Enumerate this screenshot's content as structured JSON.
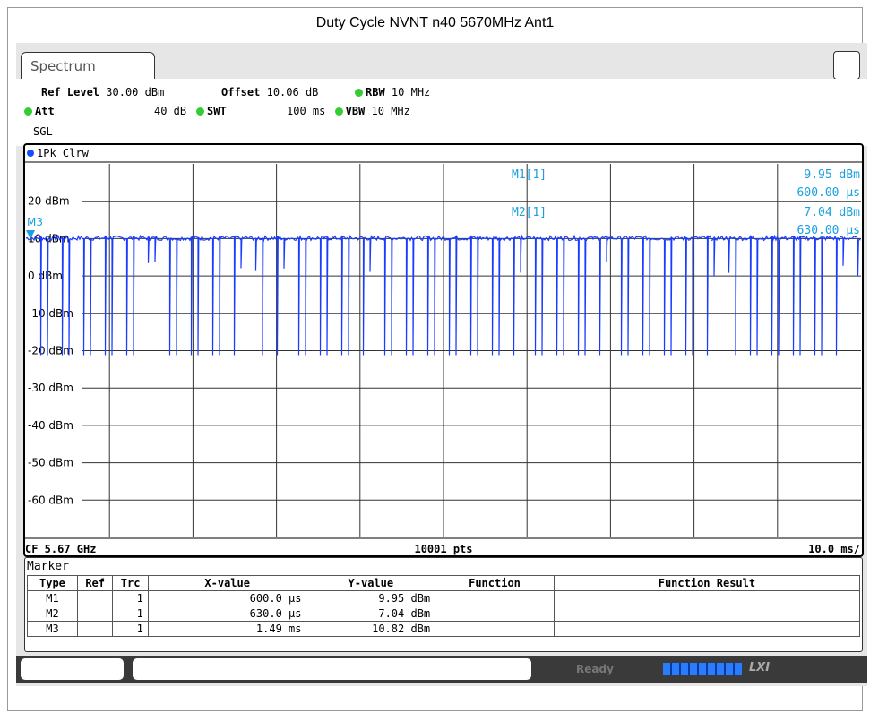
{
  "title": "Duty Cycle NVNT n40 5670MHz Ant1",
  "tab": "Spectrum",
  "settings": [
    {
      "label": "Ref Level",
      "value": "30.00 dBm"
    },
    {
      "label": "Offset",
      "value": "10.06 dB"
    },
    {
      "label": "RBW",
      "value": "10 MHz"
    },
    {
      "label": "Att",
      "value": "40 dB"
    },
    {
      "label": "SWT",
      "value": "100 ms"
    },
    {
      "label": "VBW",
      "value": "10 MHz"
    }
  ],
  "mode": "SGL",
  "trace_label": "1Pk Clrw",
  "y_labels": [
    "20 dBm",
    "10 dBm",
    "0 dBm",
    "-10 dBm",
    "-20 dBm",
    "-30 dBm",
    "-40 dBm",
    "-50 dBm",
    "-60 dBm"
  ],
  "marker_readout": [
    {
      "name": "M1[1]",
      "y": "9.95 dBm",
      "x": "600.00 µs"
    },
    {
      "name": "M2[1]",
      "y": "7.04 dBm",
      "x": "630.00 µs"
    }
  ],
  "marker_label": "M3",
  "footer": {
    "center": "CF 5.67 GHz",
    "points": "10001 pts",
    "scale": "10.0 ms/"
  },
  "marker_table": {
    "title": "Marker",
    "columns": [
      "Type",
      "Ref",
      "Trc",
      "X-value",
      "Y-value",
      "Function",
      "Function Result"
    ],
    "rows": [
      {
        "type": "M1",
        "trc": "1",
        "x": "600.0 µs",
        "y": "9.95 dBm"
      },
      {
        "type": "M2",
        "trc": "1",
        "x": "630.0 µs",
        "y": "7.04 dBm"
      },
      {
        "type": "M3",
        "trc": "1",
        "x": "1.49 ms",
        "y": "10.82 dBm"
      }
    ]
  },
  "status": "Ready",
  "lxi": "LXI"
}
